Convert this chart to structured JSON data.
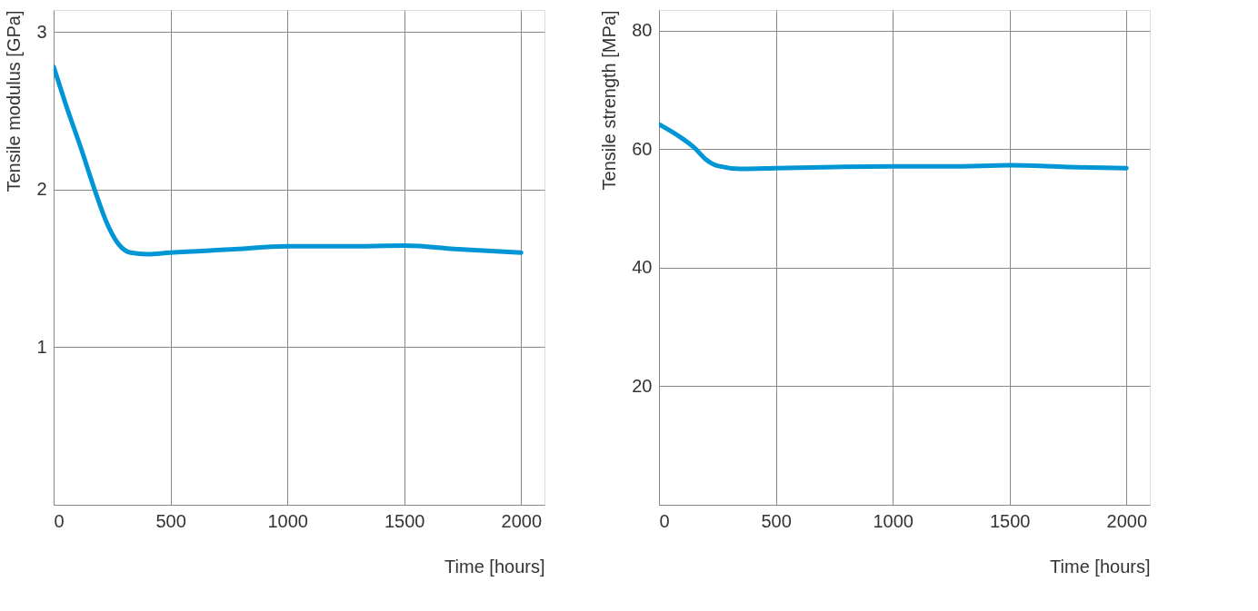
{
  "chart_data": [
    {
      "type": "line",
      "xlabel": "Time [hours]",
      "ylabel": "Tensile modulus [GPa]",
      "xlim": [
        0,
        2100
      ],
      "ylim": [
        0,
        3.14
      ],
      "xticks": [
        0,
        500,
        1000,
        1500,
        2000
      ],
      "yticks": [
        1,
        2,
        3
      ],
      "grid": true,
      "line_style": "solid",
      "series": [
        {
          "color": "#0096d6",
          "x": [
            0,
            50,
            120,
            180,
            230,
            280,
            330,
            400,
            500,
            750,
            1000,
            1250,
            1500,
            1750,
            2000
          ],
          "values": [
            2.78,
            2.55,
            2.25,
            1.98,
            1.78,
            1.65,
            1.6,
            1.59,
            1.6,
            1.62,
            1.64,
            1.64,
            1.645,
            1.62,
            1.6
          ]
        }
      ]
    },
    {
      "type": "line",
      "xlabel": "Time [hours]",
      "ylabel": "Tensile strength [MPa]",
      "xlim": [
        0,
        2100
      ],
      "ylim": [
        0,
        83.5
      ],
      "xticks": [
        0,
        500,
        1000,
        1500,
        2000
      ],
      "yticks": [
        20,
        40,
        60,
        80
      ],
      "grid": true,
      "line_style": "solid",
      "series": [
        {
          "color": "#0096d6",
          "x": [
            0,
            100,
            150,
            200,
            250,
            350,
            500,
            750,
            1000,
            1250,
            1500,
            1750,
            2000
          ],
          "values": [
            64.2,
            61.8,
            60.3,
            58.3,
            57.2,
            56.7,
            56.8,
            57.0,
            57.1,
            57.1,
            57.3,
            57.0,
            56.8
          ]
        }
      ]
    }
  ]
}
